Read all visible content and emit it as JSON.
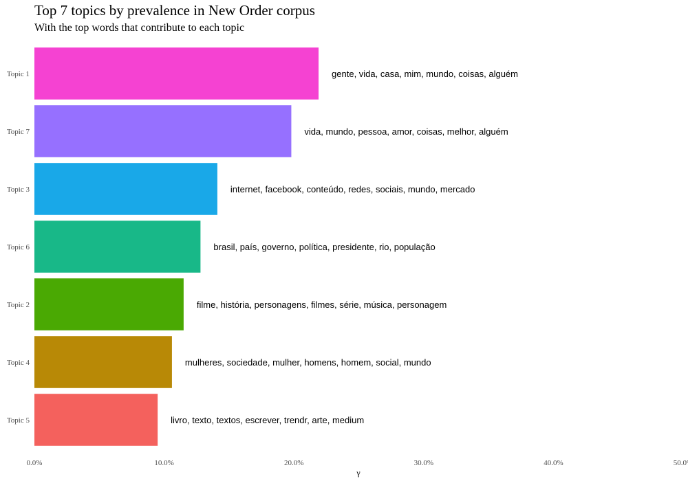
{
  "chart_data": {
    "type": "bar",
    "orientation": "horizontal",
    "title": "Top 7 topics by prevalence in New Order corpus",
    "subtitle": "With the top words that contribute to each topic",
    "xlabel": "γ",
    "ylabel": "",
    "xlim": [
      0,
      0.5
    ],
    "x_ticks": [
      "0.0%",
      "10.0%",
      "20.0%",
      "30.0%",
      "40.0%",
      "50.0%"
    ],
    "grid": false,
    "legend": "none",
    "categories": [
      "Topic 1",
      "Topic 7",
      "Topic 3",
      "Topic 6",
      "Topic 2",
      "Topic 4",
      "Topic 5"
    ],
    "values": [
      0.219,
      0.198,
      0.141,
      0.128,
      0.115,
      0.106,
      0.095
    ],
    "terms": [
      "gente, vida, casa, mim, mundo, coisas, alguém",
      "vida, mundo, pessoa, amor, coisas, melhor, alguém",
      "internet, facebook, conteúdo, redes, sociais, mundo, mercado",
      "brasil, país, governo, política, presidente, rio, população",
      "filme, história, personagens, filmes, série, música, personagem",
      "mulheres, sociedade, mulher, homens, homem, social, mundo",
      "livro, texto, textos, escrever, trendr, arte, medium"
    ],
    "colors": [
      "#F542D2",
      "#9670FF",
      "#19A8E8",
      "#18B888",
      "#4AA903",
      "#B88906",
      "#F4615D"
    ]
  }
}
